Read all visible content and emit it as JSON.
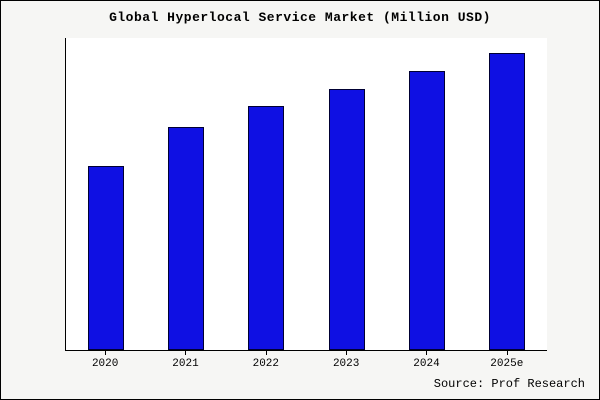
{
  "chart": {
    "title": "Global Hyperlocal Service Market (Million USD)",
    "source": "Source: Prof Research"
  },
  "chart_data": {
    "type": "bar",
    "title": "Global Hyperlocal Service Market (Million USD)",
    "categories": [
      "2020",
      "2021",
      "2022",
      "2023",
      "2024",
      "2025e"
    ],
    "values": [
      62,
      75,
      82,
      88,
      94,
      100
    ],
    "xlabel": "",
    "ylabel": "",
    "ylim": [
      0,
      105
    ],
    "grid": false,
    "legend": "none",
    "bar_color": "#0f10e3",
    "bar_edge_color": "#000033",
    "plot_background": "#ffffff",
    "outer_background": "#f6f6f4"
  }
}
